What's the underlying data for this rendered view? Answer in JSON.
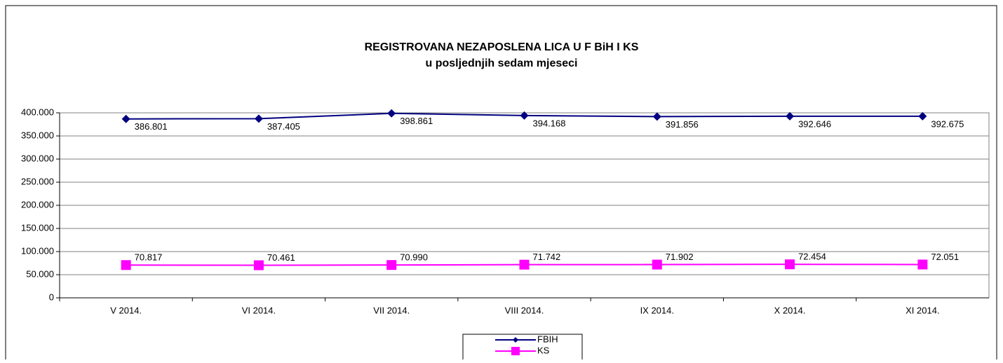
{
  "chart_data": {
    "type": "line",
    "title": "REGISTROVANA NEZAPOSLENA LICA U F BiH I KS",
    "subtitle": "u posljednjih sedam mjeseci",
    "categories": [
      "V 2014.",
      "VI 2014.",
      "VII 2014.",
      "VIII 2014.",
      "IX 2014.",
      "X 2014.",
      "XI 2014."
    ],
    "series": [
      {
        "name": "FBIH",
        "color": "#000080",
        "marker": "diamond",
        "values": [
          386801,
          387405,
          398861,
          394168,
          391856,
          392646,
          392675
        ],
        "value_labels": [
          "386.801",
          "387.405",
          "398.861",
          "394.168",
          "391.856",
          "392.646",
          "392.675"
        ]
      },
      {
        "name": "KS",
        "color": "#ff00ff",
        "marker": "square",
        "values": [
          70817,
          70461,
          70990,
          71742,
          71902,
          72454,
          72051
        ],
        "value_labels": [
          "70.817",
          "70.461",
          "70.990",
          "71.742",
          "71.902",
          "72.454",
          "72.051"
        ]
      }
    ],
    "ylim": [
      0,
      400000
    ],
    "yticks": [
      0,
      {
        "value": 50000,
        "label": "50.000"
      },
      {
        "value": 100000,
        "label": "100.000"
      },
      {
        "value": 150000,
        "label": "150.000"
      },
      {
        "value": 200000,
        "label": "200.000"
      },
      {
        "value": 250000,
        "label": "250.000"
      },
      {
        "value": 300000,
        "label": "300.000"
      },
      {
        "value": 350000,
        "label": "350.000"
      },
      {
        "value": 400000,
        "label": "400.000"
      }
    ],
    "grid": true
  }
}
